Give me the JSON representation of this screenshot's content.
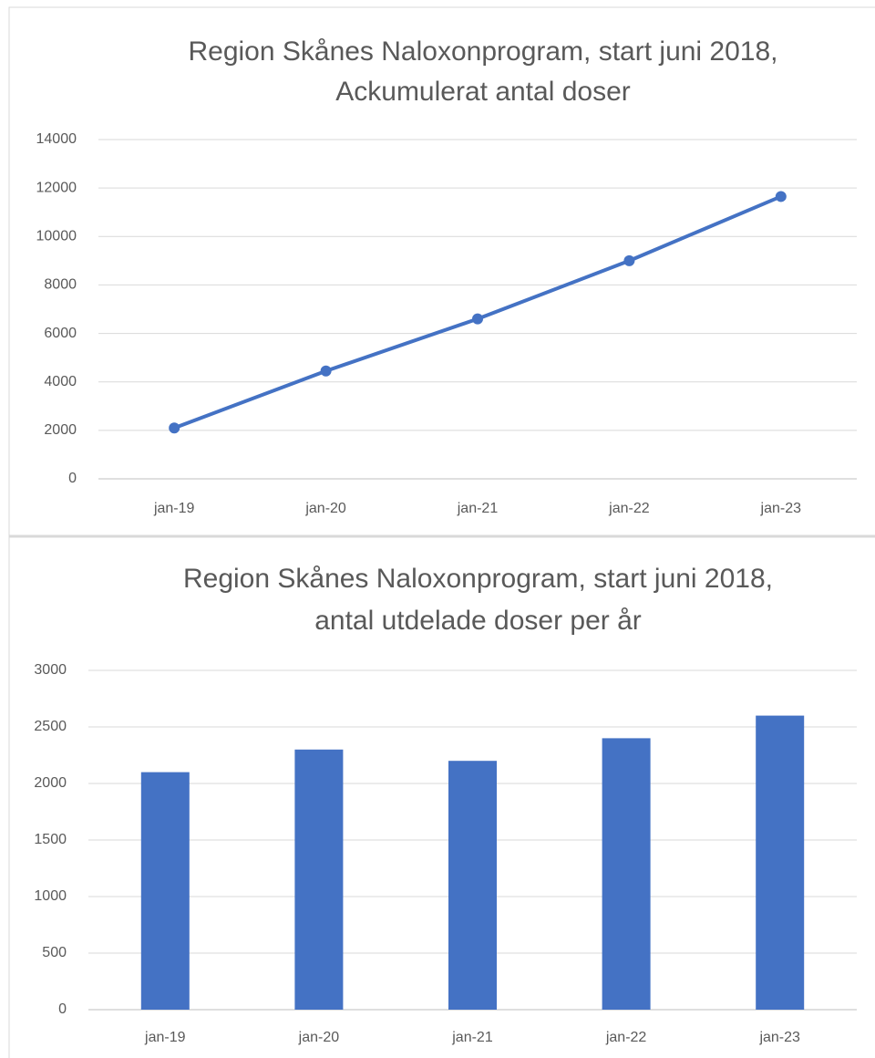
{
  "chart_data": [
    {
      "type": "line",
      "title": "Region Skånes Naloxonprogram, start juni 2018,",
      "subtitle": "Ackumulerat antal doser",
      "categories": [
        "jan-19",
        "jan-20",
        "jan-21",
        "jan-22",
        "jan-23"
      ],
      "values": [
        2100,
        4450,
        6600,
        9000,
        11650
      ],
      "color": "#4472c4",
      "ylim": [
        0,
        14000
      ],
      "yticks": [
        0,
        2000,
        4000,
        6000,
        8000,
        10000,
        12000,
        14000
      ],
      "grid": true
    },
    {
      "type": "bar",
      "title": "Region Skånes Naloxonprogram, start juni 2018,",
      "subtitle": "antal utdelade doser per år",
      "categories": [
        "jan-19",
        "jan-20",
        "jan-21",
        "jan-22",
        "jan-23"
      ],
      "values": [
        2100,
        2300,
        2200,
        2400,
        2600
      ],
      "color": "#4472c4",
      "ylim": [
        0,
        3000
      ],
      "yticks": [
        0,
        500,
        1000,
        1500,
        2000,
        2500,
        3000
      ],
      "grid": true
    }
  ]
}
